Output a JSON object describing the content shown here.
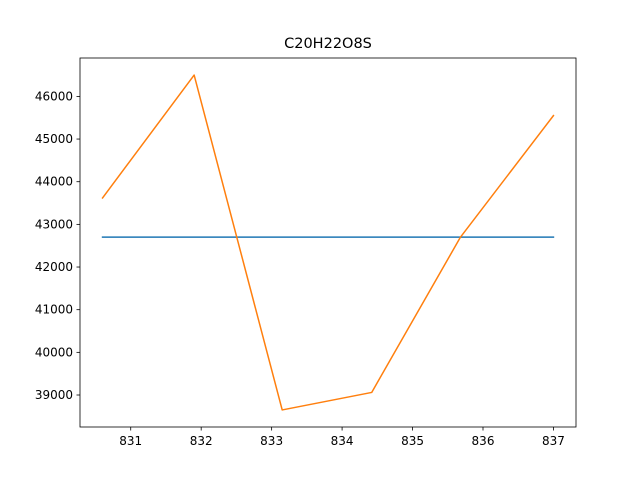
{
  "chart_data": {
    "type": "line",
    "title": "C20H22O8S",
    "xlabel": "",
    "ylabel": "",
    "xlim": [
      830.28,
      837.32
    ],
    "ylim": [
      38250,
      46900
    ],
    "xticks": [
      831,
      832,
      833,
      834,
      835,
      836,
      837
    ],
    "yticks": [
      39000,
      40000,
      41000,
      42000,
      43000,
      44000,
      45000,
      46000
    ],
    "grid": false,
    "legend": "none",
    "series": [
      {
        "color": "#1f77b4",
        "x": [
          830.6,
          837.0
        ],
        "y": [
          42700,
          42700
        ]
      },
      {
        "color": "#ff7f0e",
        "x": [
          830.6,
          831.9,
          833.15,
          834.42,
          835.68,
          837.0
        ],
        "y": [
          43620,
          46500,
          38650,
          39060,
          42700,
          45550
        ]
      }
    ]
  }
}
